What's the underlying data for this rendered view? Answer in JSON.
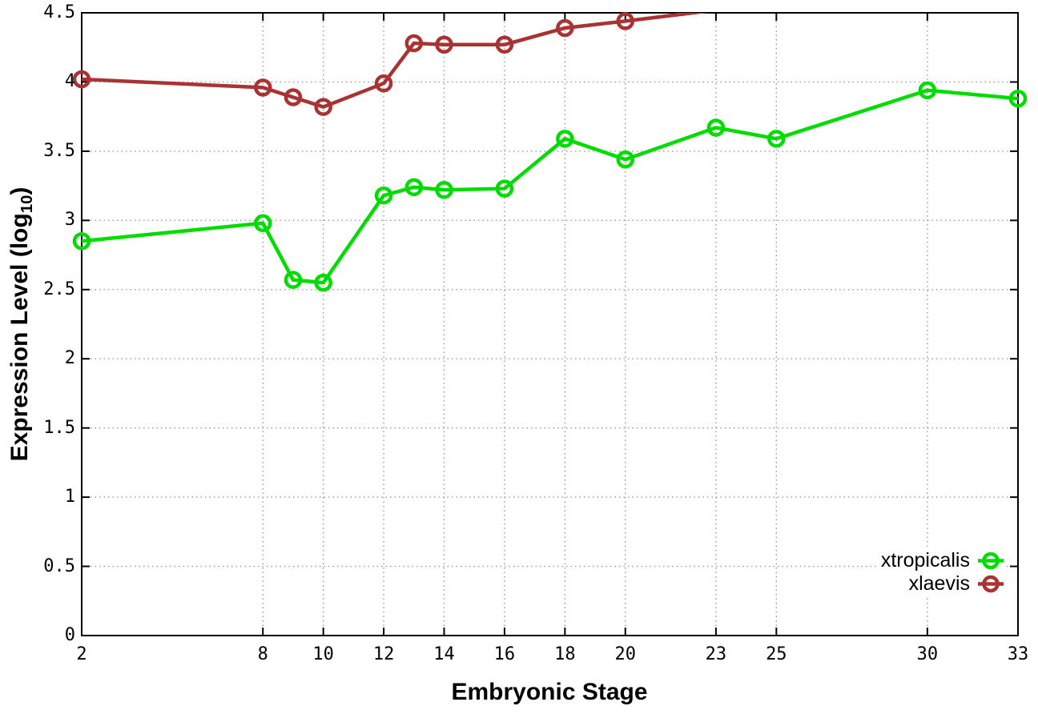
{
  "page": {
    "background": "#ffffff"
  },
  "chart_data": {
    "type": "line",
    "title": "",
    "xlabel": "Embryonic Stage",
    "ylabel": "Expression Level (log10)",
    "ylabel_parts": {
      "main": "Expression Level (log",
      "sub": "10",
      "close": ")"
    },
    "xlim": [
      2,
      33
    ],
    "ylim": [
      0,
      4.5
    ],
    "x_ticks": [
      2,
      8,
      10,
      12,
      14,
      16,
      18,
      20,
      23,
      25,
      30,
      33
    ],
    "x_tick_labels": [
      "2",
      "8",
      "10",
      "12",
      "14",
      "16",
      "18",
      "20",
      "23",
      "25",
      "30",
      "33"
    ],
    "y_ticks": [
      0,
      0.5,
      1,
      1.5,
      2,
      2.5,
      3,
      3.5,
      4,
      4.5
    ],
    "y_tick_labels": [
      "0",
      "0.5",
      "1",
      "1.5",
      "2",
      "2.5",
      "3",
      "3.5",
      "4",
      "4.5"
    ],
    "grid": true,
    "legend_position": "inside-bottom-right",
    "colors": {
      "grid": "#999999",
      "axis": "#000000",
      "text": "#000000",
      "background": "#ffffff"
    },
    "series": [
      {
        "name": "xtropicalis",
        "color": "#00dc00",
        "marker": "open-circle",
        "x": [
          2,
          8,
          9,
          10,
          12,
          13,
          14,
          16,
          18,
          20,
          23,
          25,
          30,
          33
        ],
        "values": [
          2.85,
          2.98,
          2.57,
          2.55,
          3.18,
          3.24,
          3.22,
          3.23,
          3.59,
          3.44,
          3.67,
          3.59,
          3.94,
          3.88
        ]
      },
      {
        "name": "xlaevis",
        "color": "#a93232",
        "marker": "open-circle",
        "x": [
          2,
          8,
          9,
          10,
          12,
          13,
          14,
          16,
          18,
          20
        ],
        "values": [
          4.02,
          3.96,
          3.89,
          3.82,
          3.99,
          4.28,
          4.27,
          4.27,
          4.39,
          4.44
        ],
        "offscale_continuation": {
          "x": 23,
          "value": 4.52,
          "note": "line continues above y-axis max (4.5) after stage 20"
        }
      }
    ]
  }
}
